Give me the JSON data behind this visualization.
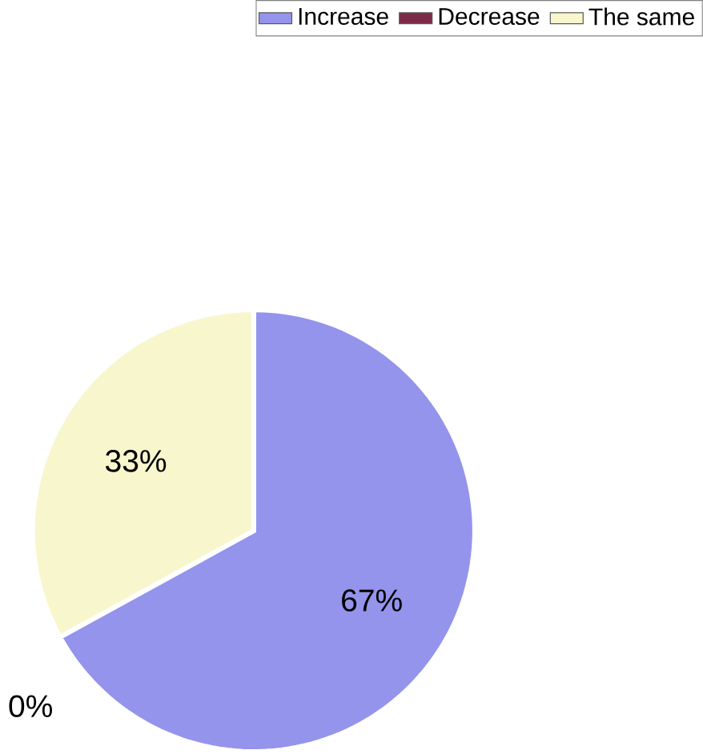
{
  "chart_data": {
    "type": "pie",
    "categories": [
      "Increase",
      "Decrease",
      "The same"
    ],
    "values": [
      67,
      0,
      33
    ],
    "value_labels": [
      "67%",
      "0%",
      "33%"
    ],
    "colors": [
      "#9494ec",
      "#7c2a48",
      "#f8f6cc"
    ],
    "legend": "top right"
  }
}
